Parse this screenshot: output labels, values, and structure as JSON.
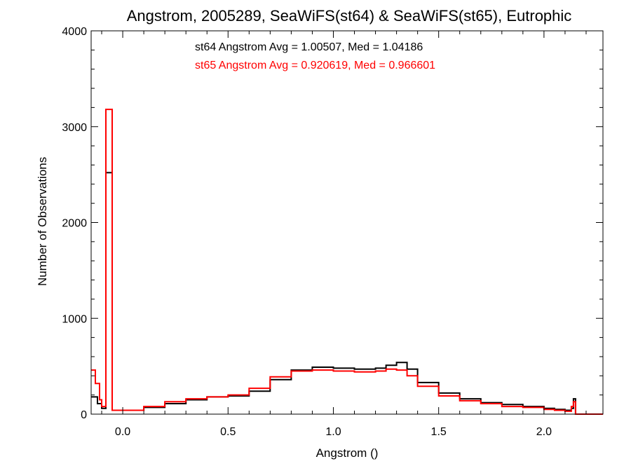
{
  "chart_data": {
    "type": "histogram-step",
    "title": "Angstrom, 2005289, SeaWiFS(st64) & SeaWiFS(st65), Eutrophic",
    "xlabel": "Angstrom ()",
    "ylabel": "Number of Observations",
    "xlim": [
      -0.15,
      2.28
    ],
    "ylim": [
      0,
      4000
    ],
    "x_ticks": [
      0.0,
      0.5,
      1.0,
      1.5,
      2.0
    ],
    "x_tick_labels": [
      "0.0",
      "0.5",
      "1.0",
      "1.5",
      "2.0"
    ],
    "y_ticks": [
      0,
      1000,
      2000,
      3000,
      4000
    ],
    "y_tick_labels": [
      "0",
      "1000",
      "2000",
      "3000",
      "4000"
    ],
    "grid": false,
    "legend_position": "top-center",
    "annotations": [
      {
        "text": "st64 Angstrom Avg = 1.00507, Med = 1.04186",
        "color": "#000000"
      },
      {
        "text": "st65 Angstrom Avg = 0.920619, Med = 0.966601",
        "color": "#ff0000"
      }
    ],
    "series": [
      {
        "name": "st64",
        "color": "#000000",
        "x": [
          -0.15,
          -0.12,
          -0.1,
          -0.08,
          -0.05,
          0.0,
          0.1,
          0.2,
          0.3,
          0.4,
          0.5,
          0.6,
          0.7,
          0.8,
          0.9,
          1.0,
          1.1,
          1.2,
          1.25,
          1.3,
          1.35,
          1.4,
          1.5,
          1.6,
          1.7,
          1.8,
          1.9,
          2.0,
          2.05,
          2.1,
          2.13,
          2.14,
          2.15,
          2.16,
          2.2,
          2.28
        ],
        "values": [
          180,
          110,
          60,
          2520,
          40,
          40,
          70,
          110,
          150,
          180,
          190,
          240,
          360,
          460,
          490,
          480,
          470,
          480,
          510,
          540,
          470,
          330,
          220,
          160,
          120,
          100,
          80,
          60,
          50,
          40,
          60,
          160,
          0,
          0,
          0,
          0
        ]
      },
      {
        "name": "st65",
        "color": "#ff0000",
        "x": [
          -0.15,
          -0.13,
          -0.11,
          -0.1,
          -0.08,
          -0.05,
          0.0,
          0.1,
          0.2,
          0.3,
          0.4,
          0.5,
          0.6,
          0.7,
          0.8,
          0.9,
          1.0,
          1.1,
          1.2,
          1.25,
          1.3,
          1.35,
          1.4,
          1.5,
          1.6,
          1.7,
          1.8,
          1.9,
          2.0,
          2.05,
          2.1,
          2.13,
          2.14,
          2.15,
          2.16,
          2.2,
          2.28
        ],
        "values": [
          460,
          320,
          150,
          80,
          3180,
          40,
          40,
          80,
          130,
          160,
          180,
          200,
          270,
          390,
          450,
          460,
          450,
          440,
          450,
          470,
          460,
          400,
          290,
          190,
          140,
          110,
          80,
          70,
          50,
          40,
          30,
          80,
          130,
          0,
          0,
          0,
          0
        ]
      }
    ]
  }
}
